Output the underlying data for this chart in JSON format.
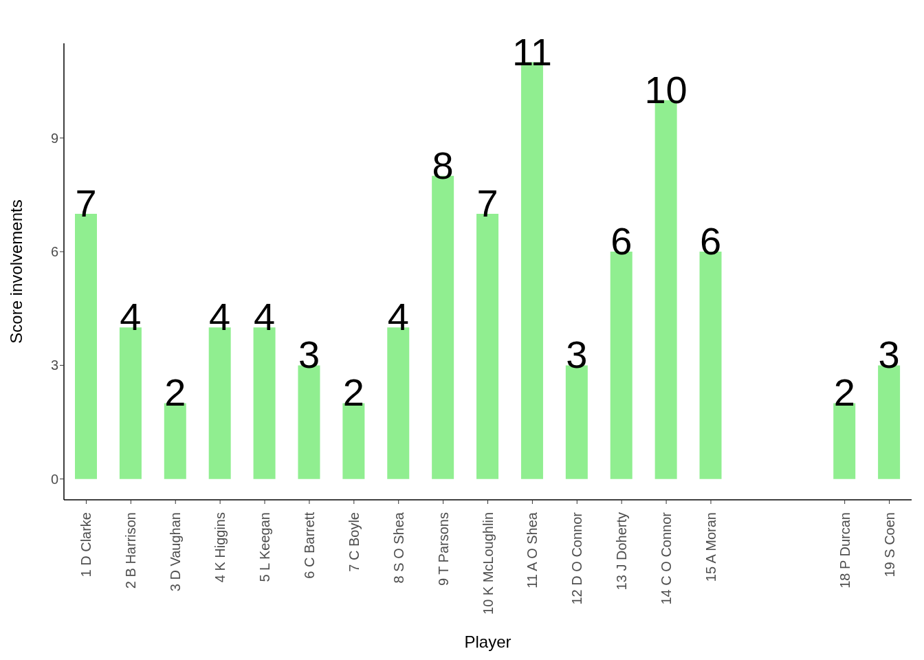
{
  "chart_data": {
    "type": "bar",
    "xlabel": "Player",
    "ylabel": "Score involvements",
    "categories": [
      "1 D Clarke",
      "2 B Harrison",
      "3 D Vaughan",
      "4 K Higgins",
      "5 L Keegan",
      "6 C Barrett",
      "7 C Boyle",
      "8 S O Shea",
      "9 T Parsons",
      "10 K McLoughlin",
      "11 A O Shea",
      "12 D O Connor",
      "13 J Doherty",
      "14 C O Connor",
      "15 A Moran",
      null,
      null,
      "18 P Durcan",
      "19 S Coen"
    ],
    "values": [
      7,
      4,
      2,
      4,
      4,
      3,
      2,
      4,
      8,
      7,
      11,
      3,
      6,
      10,
      6,
      null,
      null,
      2,
      3
    ],
    "color": "#90ee90",
    "ylim": [
      -0.55,
      11.5
    ],
    "yticks": [
      0,
      3,
      6,
      9
    ],
    "grid": false,
    "data_labels": true
  }
}
